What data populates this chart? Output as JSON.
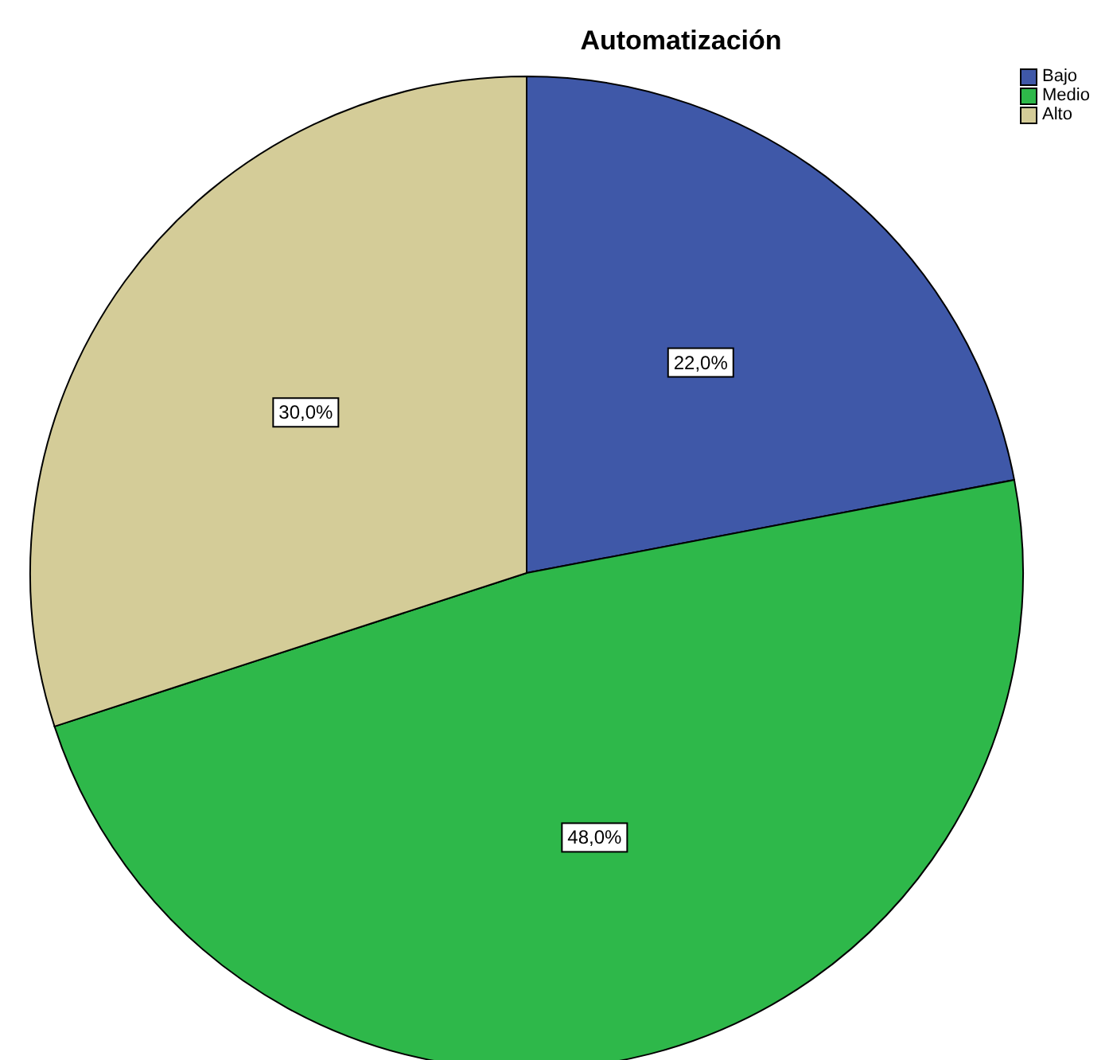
{
  "chart_data": {
    "type": "pie",
    "title": "Automatización",
    "categories": [
      "Bajo",
      "Medio",
      "Alto"
    ],
    "values": [
      22,
      48,
      30
    ],
    "colors": [
      "#3f58a8",
      "#2eb84a",
      "#d4cc98"
    ],
    "value_labels": [
      "22,0%",
      "48,0%",
      "30,0%"
    ],
    "legend": "top right"
  }
}
